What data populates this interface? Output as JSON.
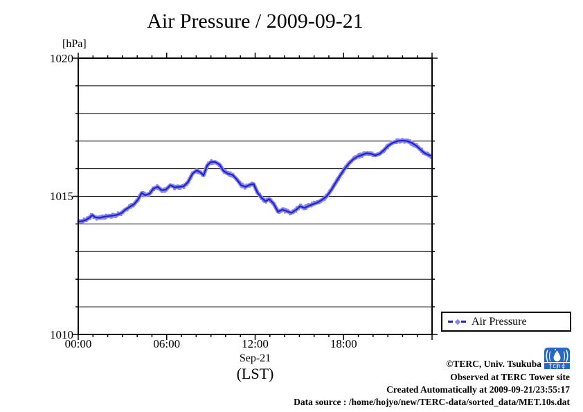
{
  "title": "Air Pressure / 2009-09-21",
  "y_unit_label": "[hPa]",
  "x_axis": {
    "date_label": "Sep-21",
    "tz_label": "(LST)",
    "ticks": [
      {
        "hour": 0,
        "label": "00:00"
      },
      {
        "hour": 6,
        "label": "06:00"
      },
      {
        "hour": 12,
        "label": "12:00"
      },
      {
        "hour": 18,
        "label": "18:00"
      }
    ]
  },
  "legend": {
    "label": "Air Pressure"
  },
  "credits": {
    "line1": "©TERC, Univ. Tsukuba",
    "line2": "Observed at TERC Tower site",
    "line3": "Created Automatically at 2009-09-21/23:55:17",
    "line4": "Data source : /home/hojyo/new/TERC-data/sorted_data/MET.10s.dat"
  },
  "logo": {
    "letters_display": "T E R C"
  },
  "colors": {
    "line": "#2222cc",
    "marker_halo": "#8484ee",
    "axis": "#000000",
    "logo_blue": "#2668c4"
  },
  "chart_data": {
    "type": "line",
    "title": "Air Pressure / 2009-09-21",
    "xlabel": "Sep-21 (LST)",
    "ylabel": "[hPa]",
    "xlim_hours": [
      0,
      24
    ],
    "ylim": [
      1010,
      1020
    ],
    "y_label_ticks": [
      1010,
      1015,
      1020
    ],
    "y_grid_step": 1,
    "x_major_step_hours": 6,
    "x_minor_step_hours": 1,
    "grid": "horizontal-only",
    "legend_position": "outside-right-bottom",
    "series": [
      {
        "name": "Air Pressure",
        "units": "hPa",
        "points": [
          [
            0.0,
            1014.08
          ],
          [
            0.25,
            1014.1
          ],
          [
            0.5,
            1014.14
          ],
          [
            0.75,
            1014.22
          ],
          [
            0.95,
            1014.32
          ],
          [
            1.15,
            1014.24
          ],
          [
            1.45,
            1014.22
          ],
          [
            1.75,
            1014.26
          ],
          [
            2.05,
            1014.28
          ],
          [
            2.35,
            1014.3
          ],
          [
            2.65,
            1014.33
          ],
          [
            2.95,
            1014.4
          ],
          [
            3.2,
            1014.52
          ],
          [
            3.5,
            1014.62
          ],
          [
            3.8,
            1014.72
          ],
          [
            4.05,
            1014.88
          ],
          [
            4.3,
            1015.12
          ],
          [
            4.55,
            1015.04
          ],
          [
            4.85,
            1015.1
          ],
          [
            5.1,
            1015.28
          ],
          [
            5.4,
            1015.34
          ],
          [
            5.65,
            1015.22
          ],
          [
            5.95,
            1015.24
          ],
          [
            6.25,
            1015.4
          ],
          [
            6.55,
            1015.32
          ],
          [
            6.85,
            1015.34
          ],
          [
            7.15,
            1015.36
          ],
          [
            7.45,
            1015.52
          ],
          [
            7.75,
            1015.82
          ],
          [
            8.05,
            1015.94
          ],
          [
            8.3,
            1015.86
          ],
          [
            8.5,
            1015.76
          ],
          [
            8.75,
            1016.12
          ],
          [
            9.0,
            1016.24
          ],
          [
            9.3,
            1016.24
          ],
          [
            9.6,
            1016.14
          ],
          [
            9.85,
            1015.92
          ],
          [
            10.15,
            1015.82
          ],
          [
            10.45,
            1015.78
          ],
          [
            10.75,
            1015.62
          ],
          [
            11.05,
            1015.4
          ],
          [
            11.35,
            1015.34
          ],
          [
            11.65,
            1015.42
          ],
          [
            11.9,
            1015.44
          ],
          [
            12.15,
            1015.14
          ],
          [
            12.45,
            1014.94
          ],
          [
            12.7,
            1014.82
          ],
          [
            12.95,
            1014.9
          ],
          [
            13.25,
            1014.74
          ],
          [
            13.55,
            1014.44
          ],
          [
            13.85,
            1014.52
          ],
          [
            14.15,
            1014.46
          ],
          [
            14.45,
            1014.4
          ],
          [
            14.75,
            1014.5
          ],
          [
            15.05,
            1014.64
          ],
          [
            15.35,
            1014.58
          ],
          [
            15.65,
            1014.66
          ],
          [
            15.95,
            1014.72
          ],
          [
            16.25,
            1014.78
          ],
          [
            16.55,
            1014.88
          ],
          [
            16.85,
            1015.0
          ],
          [
            17.15,
            1015.22
          ],
          [
            17.45,
            1015.48
          ],
          [
            17.75,
            1015.74
          ],
          [
            18.05,
            1015.98
          ],
          [
            18.35,
            1016.18
          ],
          [
            18.65,
            1016.34
          ],
          [
            18.95,
            1016.44
          ],
          [
            19.25,
            1016.5
          ],
          [
            19.55,
            1016.56
          ],
          [
            19.85,
            1016.54
          ],
          [
            20.15,
            1016.48
          ],
          [
            20.45,
            1016.54
          ],
          [
            20.75,
            1016.68
          ],
          [
            21.05,
            1016.84
          ],
          [
            21.35,
            1016.94
          ],
          [
            21.65,
            1017.0
          ],
          [
            22.0,
            1017.02
          ],
          [
            22.3,
            1017.0
          ],
          [
            22.6,
            1016.94
          ],
          [
            22.9,
            1016.84
          ],
          [
            23.2,
            1016.7
          ],
          [
            23.5,
            1016.56
          ],
          [
            23.75,
            1016.5
          ],
          [
            23.92,
            1016.46
          ]
        ]
      }
    ]
  }
}
